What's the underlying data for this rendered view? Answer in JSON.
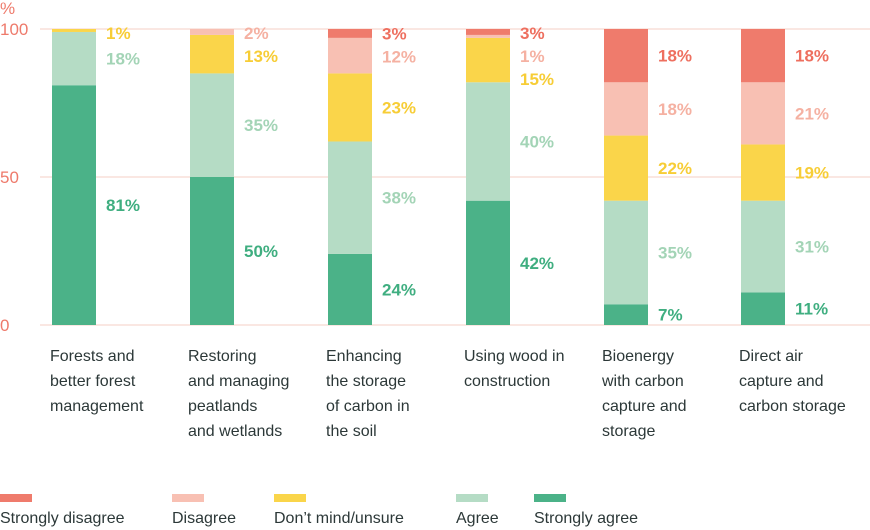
{
  "chart_data": {
    "type": "bar",
    "stacked": true,
    "ylabel": "%",
    "ylim": [
      0,
      100
    ],
    "yticks": [
      0,
      50,
      100
    ],
    "grid": true,
    "legend_placement": "bottom",
    "categories": [
      "Forests and better forest management",
      "Restoring and managing peatlands and wetlands",
      "Enhancing the storage of carbon in the soil",
      "Using wood in construction",
      "Bioenergy with carbon capture and storage",
      "Direct air capture and carbon storage"
    ],
    "category_lines": [
      [
        "Forests and",
        "better forest",
        "management"
      ],
      [
        "Restoring",
        "and managing",
        "peatlands",
        "and wetlands"
      ],
      [
        "Enhancing",
        "the storage",
        "of carbon in",
        "the soil"
      ],
      [
        "Using wood in",
        "construction"
      ],
      [
        "Bioenergy",
        "with carbon",
        "capture and",
        "storage"
      ],
      [
        "Direct air",
        "capture and",
        "carbon storage"
      ]
    ],
    "series": [
      {
        "name": "Strongly agree",
        "color": "#4bb288",
        "text_color": "#3fae80",
        "values": [
          81,
          50,
          24,
          42,
          7,
          11
        ]
      },
      {
        "name": "Agree",
        "color": "#b5dcc5",
        "text_color": "#a3d4b6",
        "values": [
          18,
          35,
          38,
          40,
          35,
          31
        ]
      },
      {
        "name": "Don’t mind/unsure",
        "color": "#fad54a",
        "text_color": "#f7cd36",
        "values": [
          1,
          13,
          23,
          15,
          22,
          19
        ]
      },
      {
        "name": "Disagree",
        "color": "#f8c0b3",
        "text_color": "#f5b1a2",
        "values": [
          0,
          2,
          12,
          1,
          18,
          21
        ]
      },
      {
        "name": "Strongly disagree",
        "color": "#ef7b6c",
        "text_color": "#ee6f5f",
        "values": [
          0,
          0,
          3,
          3,
          18,
          18
        ]
      }
    ],
    "legend_order": [
      "Strongly disagree",
      "Disagree",
      "Don’t mind/unsure",
      "Agree",
      "Strongly agree"
    ]
  }
}
